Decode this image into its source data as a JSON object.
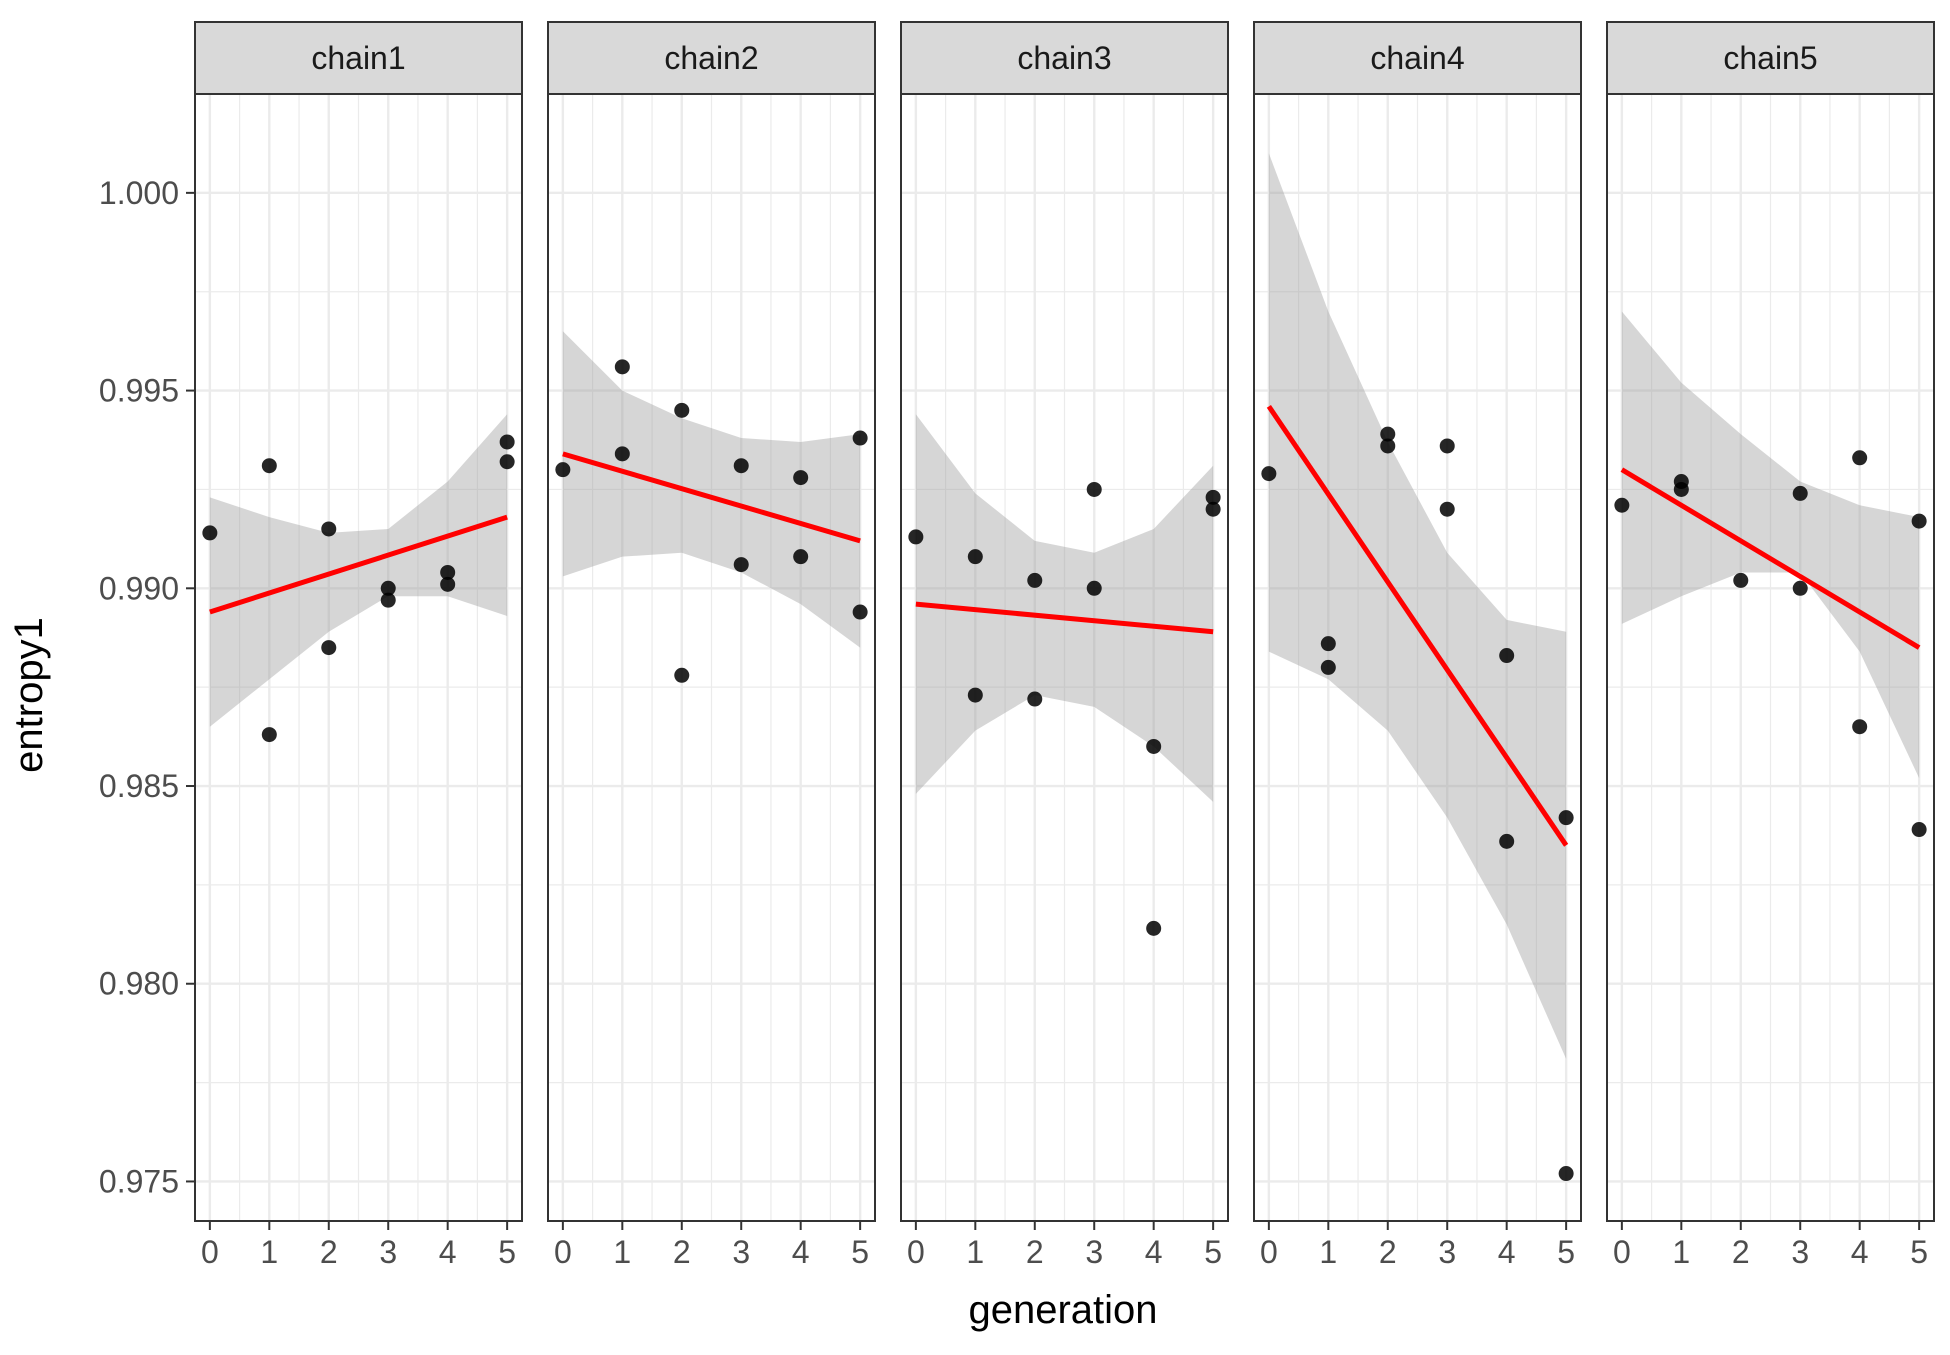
{
  "chart_data": {
    "type": "scatter",
    "facet_by": "chain",
    "xlabel": "generation",
    "ylabel": "entropy1",
    "xlim": [
      -0.25,
      5.25
    ],
    "ylim": [
      0.974,
      1.0025
    ],
    "x_ticks": [
      0,
      1,
      2,
      3,
      4,
      5
    ],
    "y_ticks": [
      0.975,
      0.98,
      0.985,
      0.99,
      0.995,
      1.0
    ],
    "y_tick_labels": [
      "0.975",
      "0.980",
      "0.985",
      "0.990",
      "0.995",
      "1.000"
    ],
    "grid": true,
    "legend": "none",
    "colors": {
      "points": "#000000",
      "fit_line": "#ff0000",
      "confidence_band": "#999999",
      "strip_fill": "#d9d9d9",
      "grid_major": "#ebebeb",
      "panel_border": "#333333"
    },
    "fit": {
      "method": "linear",
      "confidence_band": true
    },
    "panels": [
      {
        "label": "chain1",
        "points": [
          [
            0,
            0.9914
          ],
          [
            1,
            0.9931
          ],
          [
            1,
            0.9863
          ],
          [
            2,
            0.9915
          ],
          [
            2,
            0.9885
          ],
          [
            3,
            0.99
          ],
          [
            3,
            0.9897
          ],
          [
            4,
            0.9904
          ],
          [
            4,
            0.9901
          ],
          [
            5,
            0.9937
          ],
          [
            5,
            0.9932
          ]
        ],
        "fit_line": [
          [
            0,
            0.9894
          ],
          [
            5,
            0.9918
          ]
        ],
        "band": [
          [
            0,
            0.9923,
            0.9865
          ],
          [
            1,
            0.9918,
            0.9877
          ],
          [
            2,
            0.9914,
            0.9889
          ],
          [
            3,
            0.9915,
            0.9898
          ],
          [
            4,
            0.9927,
            0.9898
          ],
          [
            5,
            0.9944,
            0.9893
          ]
        ]
      },
      {
        "label": "chain2",
        "points": [
          [
            0,
            0.993
          ],
          [
            1,
            0.9956
          ],
          [
            1,
            0.9934
          ],
          [
            2,
            0.9945
          ],
          [
            2,
            0.9878
          ],
          [
            3,
            0.9931
          ],
          [
            3,
            0.9906
          ],
          [
            4,
            0.9928
          ],
          [
            4,
            0.9908
          ],
          [
            5,
            0.9938
          ],
          [
            5,
            0.9894
          ]
        ],
        "fit_line": [
          [
            0,
            0.9934
          ],
          [
            5,
            0.9912
          ]
        ],
        "band": [
          [
            0,
            0.9965,
            0.9903
          ],
          [
            1,
            0.995,
            0.9908
          ],
          [
            2,
            0.9943,
            0.9909
          ],
          [
            3,
            0.9938,
            0.9904
          ],
          [
            4,
            0.9937,
            0.9896
          ],
          [
            5,
            0.9939,
            0.9885
          ]
        ]
      },
      {
        "label": "chain3",
        "points": [
          [
            0,
            0.9913
          ],
          [
            1,
            0.9908
          ],
          [
            1,
            0.9873
          ],
          [
            2,
            0.9902
          ],
          [
            2,
            0.9872
          ],
          [
            3,
            0.9925
          ],
          [
            3,
            0.99
          ],
          [
            4,
            0.986
          ],
          [
            4,
            0.9814
          ],
          [
            5,
            0.9923
          ],
          [
            5,
            0.992
          ]
        ],
        "fit_line": [
          [
            0,
            0.9896
          ],
          [
            5,
            0.9889
          ]
        ],
        "band": [
          [
            0,
            0.9944,
            0.9848
          ],
          [
            1,
            0.9924,
            0.9864
          ],
          [
            2,
            0.9912,
            0.9873
          ],
          [
            3,
            0.9909,
            0.987
          ],
          [
            4,
            0.9915,
            0.986
          ],
          [
            5,
            0.9931,
            0.9846
          ]
        ]
      },
      {
        "label": "chain4",
        "points": [
          [
            0,
            0.9929
          ],
          [
            1,
            0.9886
          ],
          [
            1,
            0.988
          ],
          [
            2,
            0.9939
          ],
          [
            2,
            0.9936
          ],
          [
            3,
            0.9936
          ],
          [
            3,
            0.992
          ],
          [
            4,
            0.9883
          ],
          [
            4,
            0.9836
          ],
          [
            5,
            0.9842
          ],
          [
            5,
            0.9752
          ]
        ],
        "fit_line": [
          [
            0,
            0.9946
          ],
          [
            5,
            0.9835
          ]
        ],
        "band": [
          [
            0,
            1.001,
            0.9884
          ],
          [
            1,
            0.997,
            0.9877
          ],
          [
            2,
            0.9937,
            0.9864
          ],
          [
            3,
            0.9909,
            0.9842
          ],
          [
            4,
            0.9892,
            0.9815
          ],
          [
            5,
            0.9889,
            0.9781
          ]
        ]
      },
      {
        "label": "chain5",
        "points": [
          [
            0,
            0.9921
          ],
          [
            1,
            0.9927
          ],
          [
            1,
            0.9925
          ],
          [
            2,
            0.9902
          ],
          [
            3,
            0.9924
          ],
          [
            3,
            0.99
          ],
          [
            4,
            0.9933
          ],
          [
            4,
            0.9865
          ],
          [
            5,
            0.9917
          ],
          [
            5,
            0.9839
          ]
        ],
        "fit_line": [
          [
            0,
            0.993
          ],
          [
            5,
            0.9885
          ]
        ],
        "band": [
          [
            0,
            0.997,
            0.9891
          ],
          [
            1,
            0.9952,
            0.9898
          ],
          [
            2,
            0.9939,
            0.9904
          ],
          [
            3,
            0.9927,
            0.9904
          ],
          [
            4,
            0.9921,
            0.9884
          ],
          [
            5,
            0.9918,
            0.9852
          ]
        ]
      }
    ]
  }
}
